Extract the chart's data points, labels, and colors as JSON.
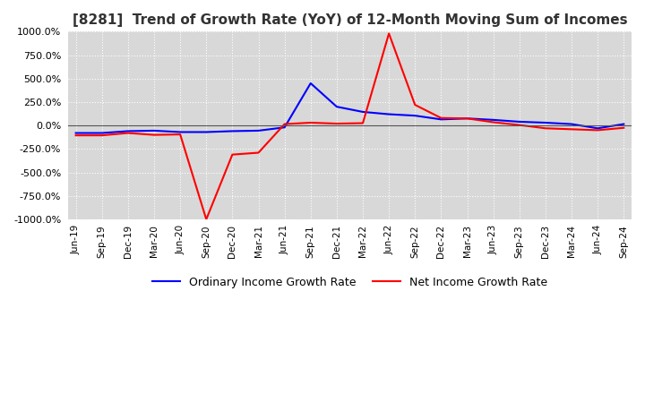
{
  "title": "[8281]  Trend of Growth Rate (YoY) of 12-Month Moving Sum of Incomes",
  "title_fontsize": 11,
  "background_color": "#ffffff",
  "plot_bg_color": "#d8d8d8",
  "grid_color": "#ffffff",
  "ylim": [
    -1000,
    1000
  ],
  "yticks": [
    -1000,
    -750,
    -500,
    -250,
    0,
    250,
    500,
    750,
    1000
  ],
  "legend_labels": [
    "Ordinary Income Growth Rate",
    "Net Income Growth Rate"
  ],
  "legend_colors": [
    "#0000ff",
    "#ff0000"
  ],
  "x_labels": [
    "Jun-19",
    "Sep-19",
    "Dec-19",
    "Mar-20",
    "Jun-20",
    "Sep-20",
    "Dec-20",
    "Mar-21",
    "Jun-21",
    "Sep-21",
    "Dec-21",
    "Mar-22",
    "Jun-22",
    "Sep-22",
    "Dec-22",
    "Mar-23",
    "Jun-23",
    "Sep-23",
    "Dec-23",
    "Mar-24",
    "Jun-24",
    "Sep-24"
  ],
  "ordinary_income_growth": [
    -80,
    -80,
    -60,
    -55,
    -70,
    -70,
    -60,
    -55,
    -20,
    450,
    200,
    145,
    120,
    105,
    65,
    75,
    60,
    40,
    30,
    15,
    -30,
    15
  ],
  "net_income_growth": [
    -105,
    -105,
    -80,
    -100,
    -95,
    -1000,
    -310,
    -290,
    15,
    30,
    20,
    25,
    980,
    220,
    80,
    75,
    35,
    5,
    -30,
    -40,
    -50,
    -25
  ]
}
